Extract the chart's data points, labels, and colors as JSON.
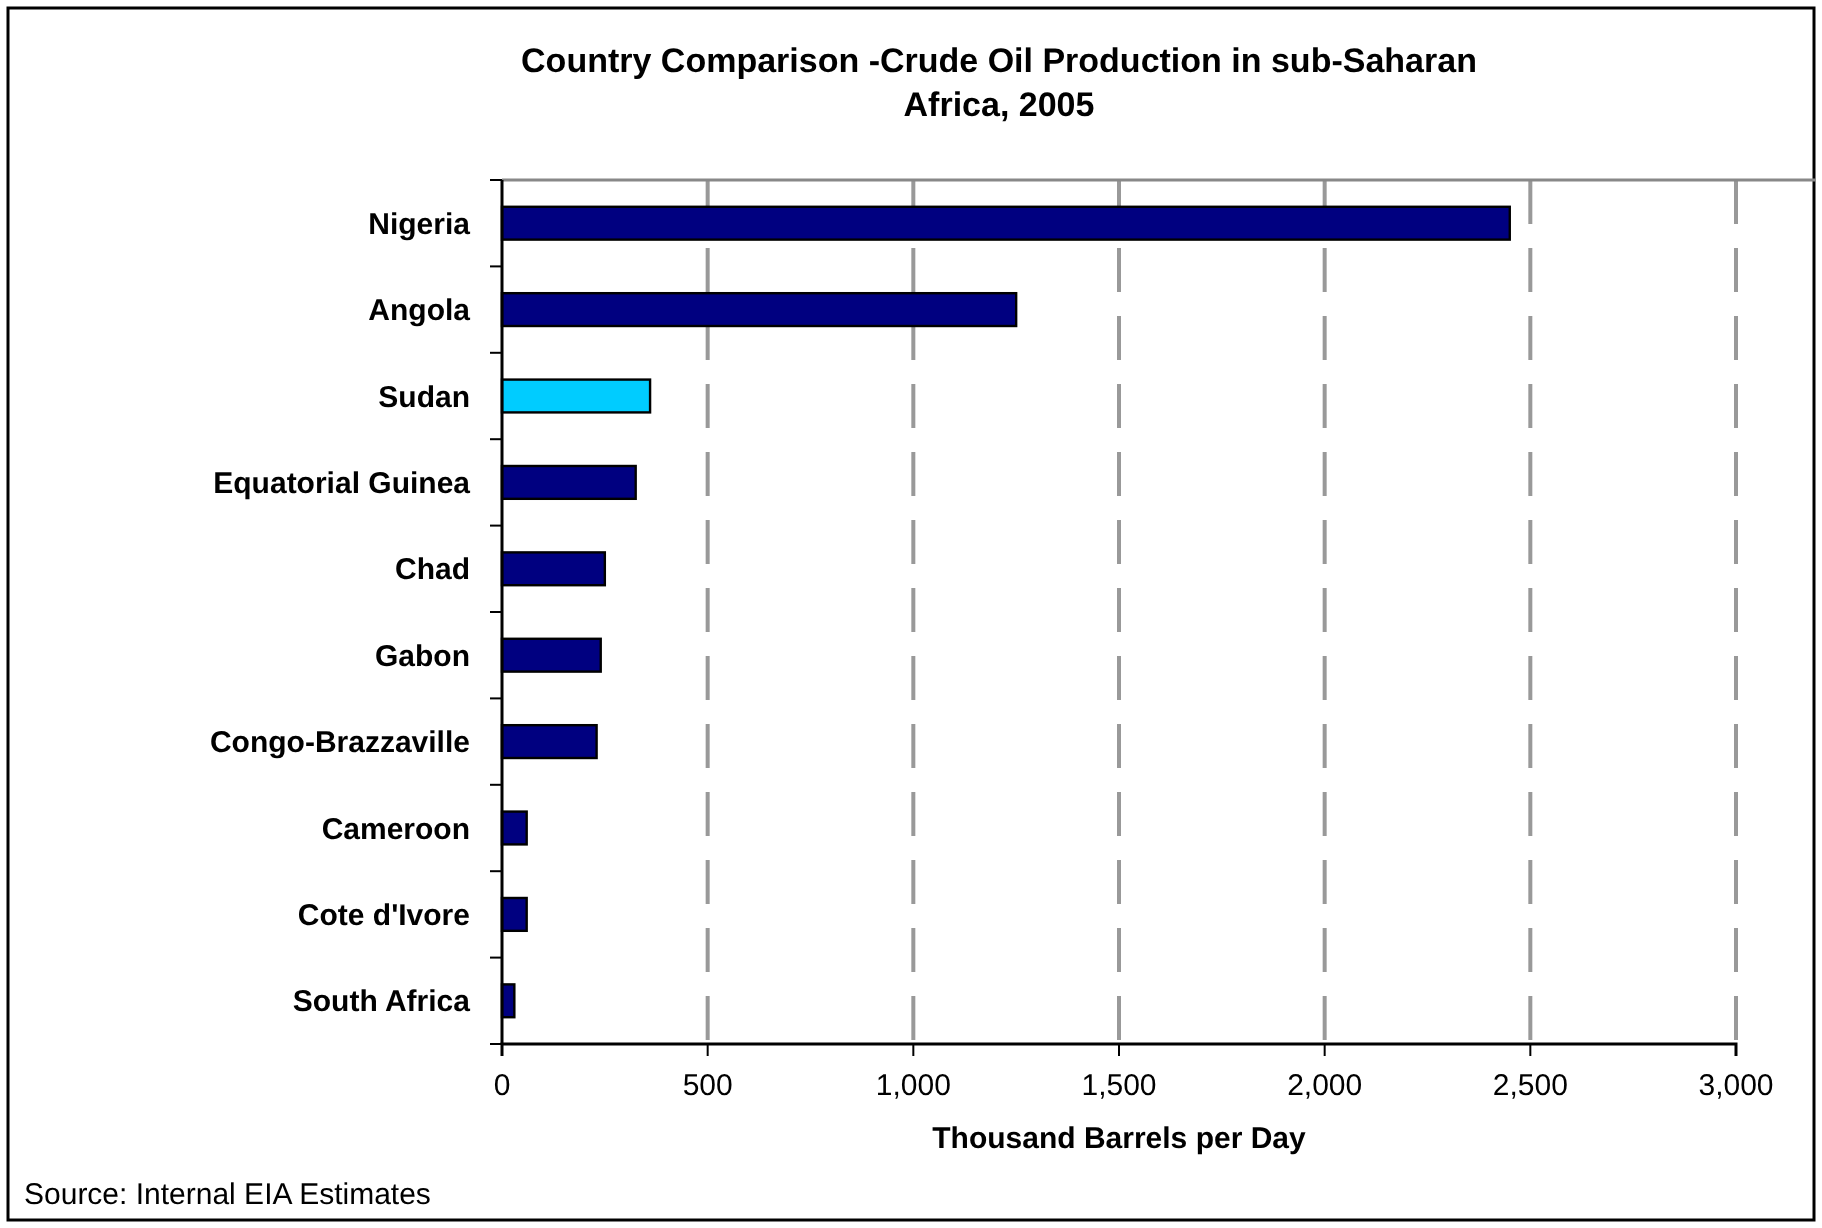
{
  "chart_data": {
    "type": "bar",
    "orientation": "horizontal",
    "title": "Country Comparison -Crude Oil Production in sub-Saharan Africa, 2005",
    "xlabel": "Thousand Barrels per Day",
    "categories": [
      "Nigeria",
      "Angola",
      "Sudan",
      "Equatorial Guinea",
      "Chad",
      "Gabon",
      "Congo-Brazzaville",
      "Cameroon",
      "Cote d'Ivore",
      "South Africa"
    ],
    "values": [
      2450,
      1250,
      360,
      325,
      250,
      240,
      230,
      60,
      60,
      30
    ],
    "colors": [
      "#000080",
      "#000080",
      "#00ccff",
      "#000080",
      "#000080",
      "#000080",
      "#000080",
      "#000080",
      "#000080",
      "#000080"
    ],
    "xlim": [
      0,
      3000
    ],
    "xticks": [
      0,
      {
        "value": 500,
        "label": "500"
      },
      {
        "value": 1000,
        "label": "1,000"
      },
      {
        "value": 1500,
        "label": "1,500"
      },
      {
        "value": 2000,
        "label": "2,000"
      },
      {
        "value": 2500,
        "label": "2,500"
      },
      {
        "value": 3000,
        "label": "3,000"
      }
    ],
    "grid": "x",
    "annotations": [
      "Source: Internal EIA Estimates"
    ]
  }
}
